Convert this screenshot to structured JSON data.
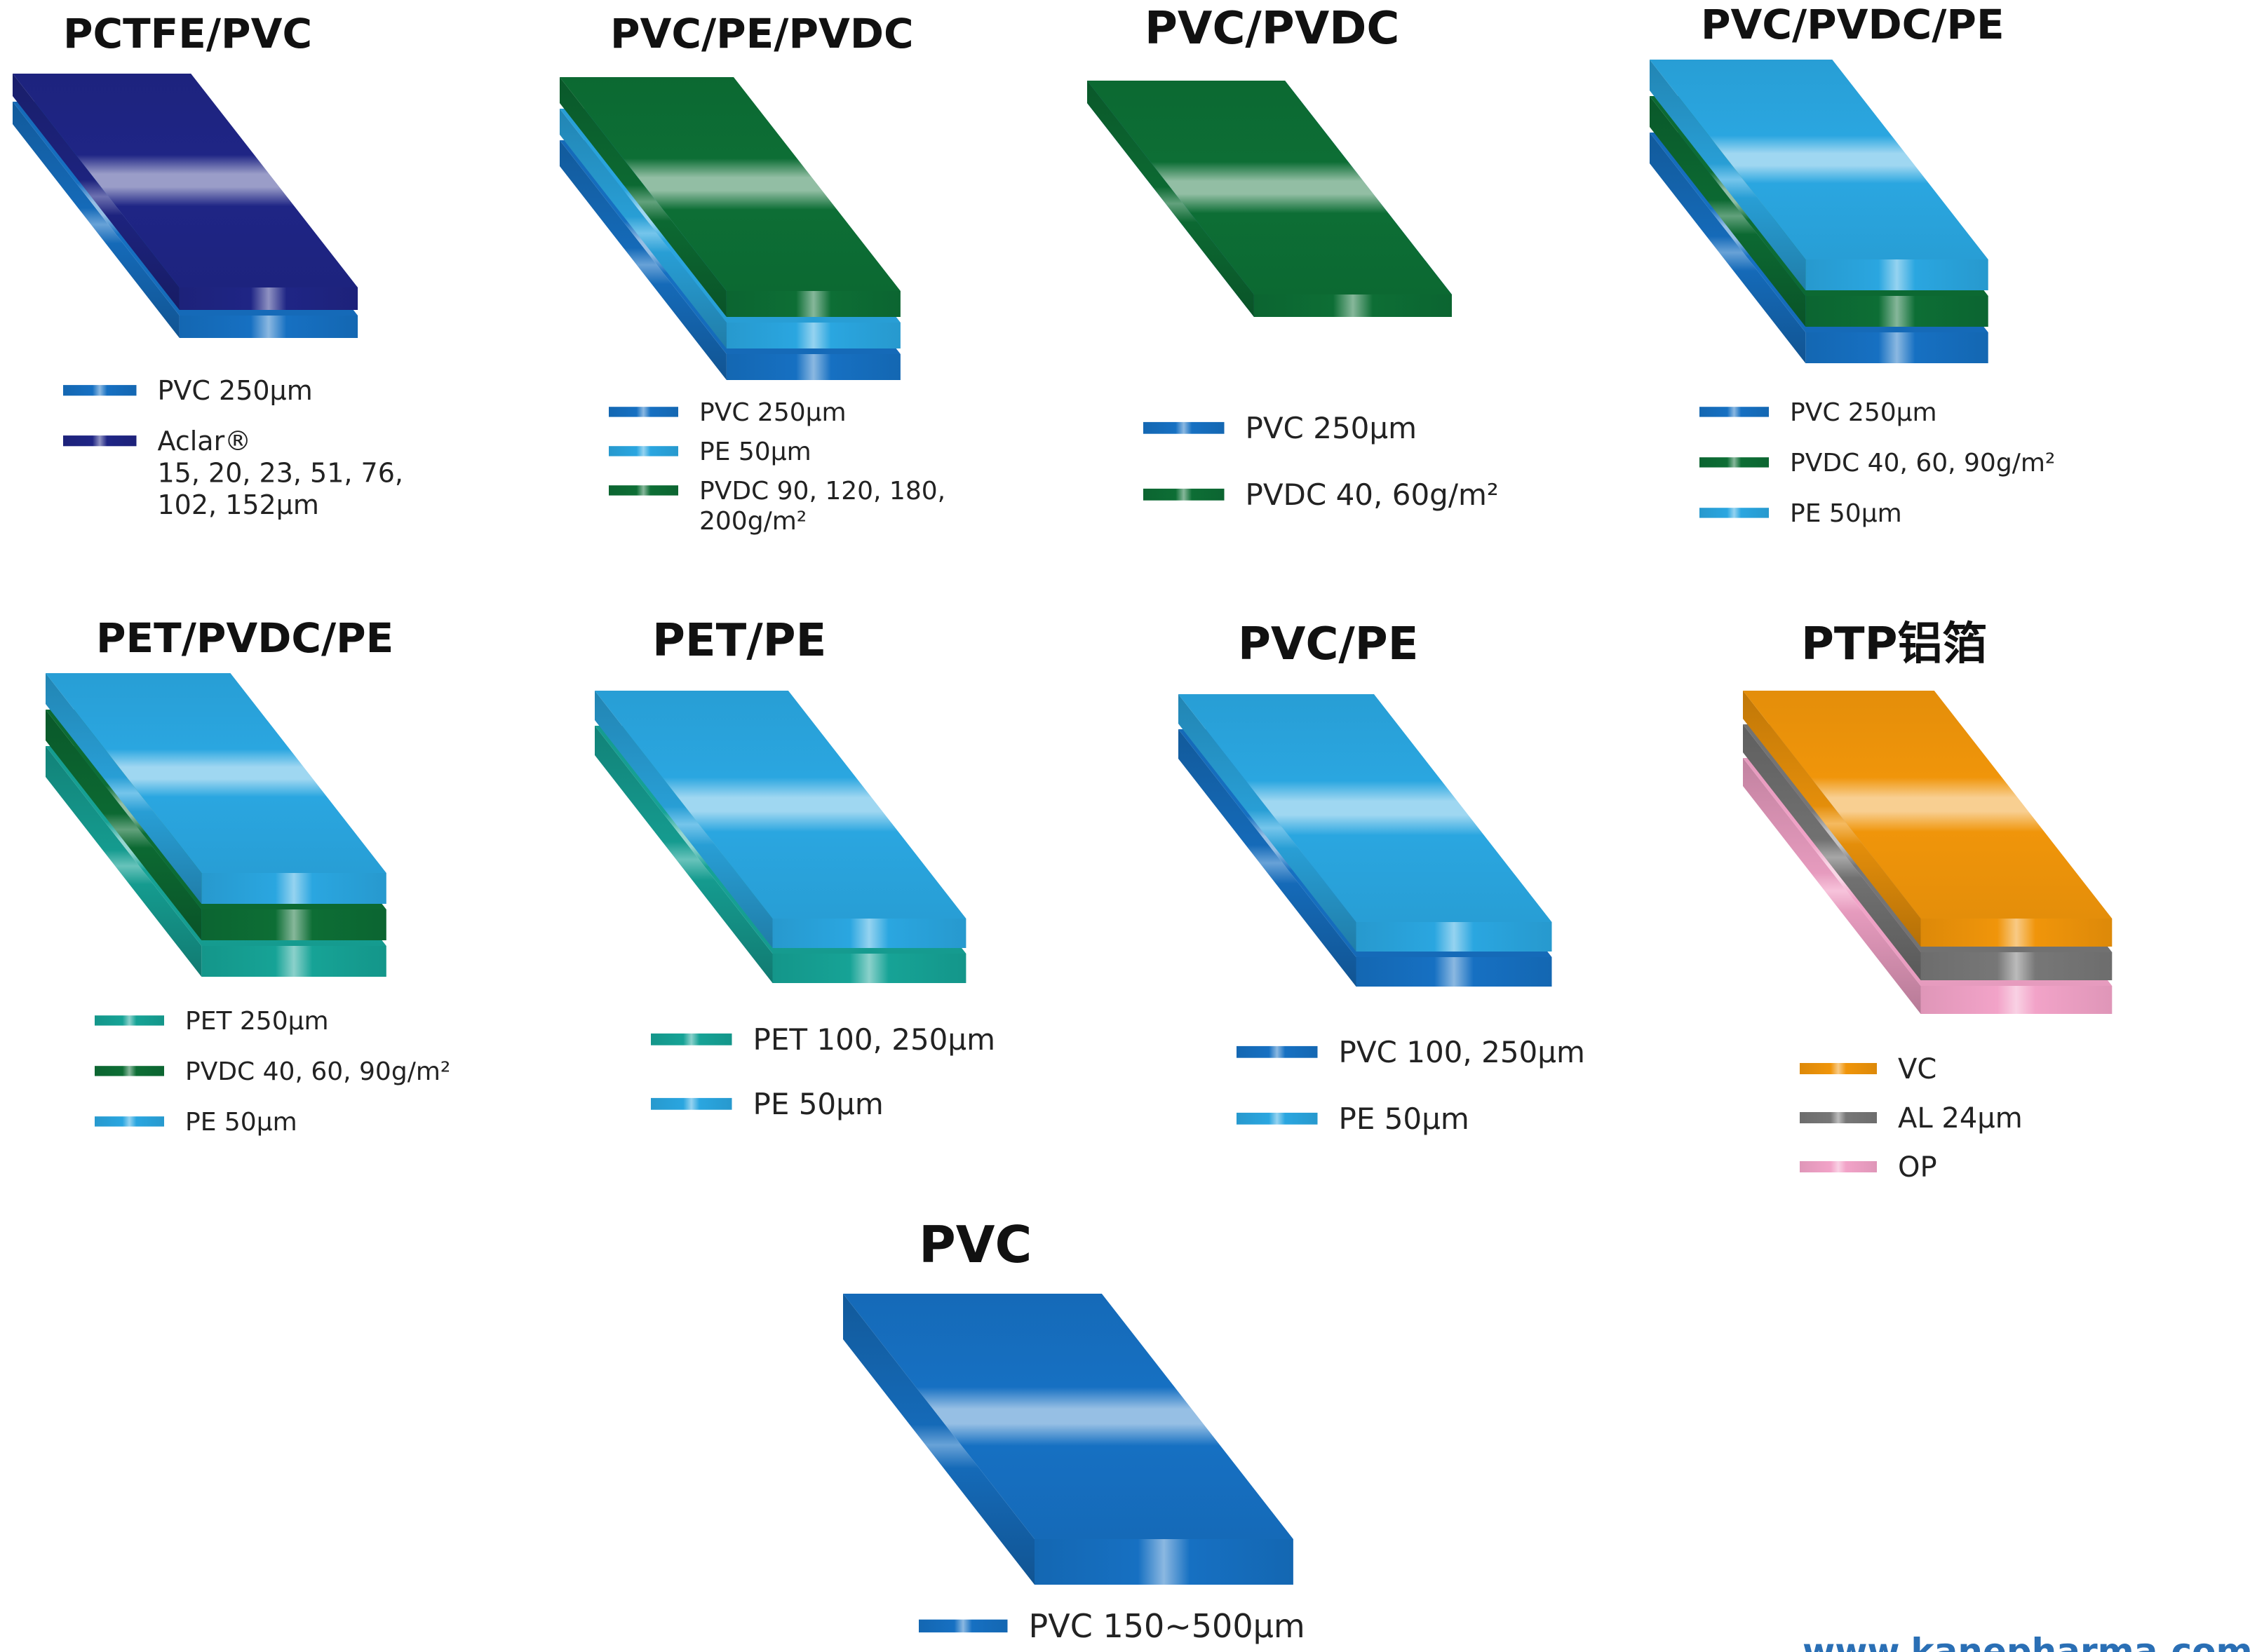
{
  "colors": {
    "PVC": "#1670c2",
    "PCTFE": "#1f2585",
    "PVDC": "#0d6e35",
    "PE": "#2aa6e0",
    "PET": "#16a396",
    "VC": "#f0950a",
    "AL": "#777777",
    "OP": "#f2a3c8"
  },
  "panels": [
    {
      "title": "PCTFE/PVC",
      "layers": [
        "PVC",
        "PCTFE"
      ],
      "legend": [
        {
          "material": "PVC",
          "lines": [
            "PVC  250μm"
          ]
        },
        {
          "material": "PCTFE",
          "lines": [
            "Aclar®",
            "15, 20, 23, 51, 76,",
            "102, 152μm"
          ]
        }
      ]
    },
    {
      "title": "PVC/PE/PVDC",
      "layers": [
        "PVC",
        "PE",
        "PVDC"
      ],
      "legend": [
        {
          "material": "PVC",
          "lines": [
            "PVC  250μm"
          ]
        },
        {
          "material": "PE",
          "lines": [
            "PE  50μm"
          ]
        },
        {
          "material": "PVDC",
          "lines": [
            "PVDC  90, 120, 180,",
            "200g/m²"
          ]
        }
      ]
    },
    {
      "title": "PVC/PVDC",
      "layers": [
        "PVC",
        "PVDC"
      ],
      "legend": [
        {
          "material": "PVC",
          "lines": [
            "PVC  250μm"
          ]
        },
        {
          "material": "PVDC",
          "lines": [
            "PVDC  40, 60g/m²"
          ]
        }
      ]
    },
    {
      "title": "PVC/PVDC/PE",
      "layers": [
        "PVC",
        "PVDC",
        "PE"
      ],
      "legend": [
        {
          "material": "PVC",
          "lines": [
            "PVC  250μm"
          ]
        },
        {
          "material": "PVDC",
          "lines": [
            "PVDC  40, 60, 90g/m²"
          ]
        },
        {
          "material": "PE",
          "lines": [
            "PE  50μm"
          ]
        }
      ]
    },
    {
      "title": "PET/PVDC/PE",
      "layers": [
        "PET",
        "PVDC",
        "PE"
      ],
      "legend": [
        {
          "material": "PET",
          "lines": [
            "PET  250μm"
          ]
        },
        {
          "material": "PVDC",
          "lines": [
            "PVDC  40, 60, 90g/m²"
          ]
        },
        {
          "material": "PE",
          "lines": [
            "PE  50μm"
          ]
        }
      ]
    },
    {
      "title": "PET/PE",
      "layers": [
        "PET",
        "PE"
      ],
      "legend": [
        {
          "material": "PET",
          "lines": [
            "PET  100, 250μm"
          ]
        },
        {
          "material": "PE",
          "lines": [
            "PE  50μm"
          ]
        }
      ]
    },
    {
      "title": "PVC/PE",
      "layers": [
        "PVC",
        "PE"
      ],
      "legend": [
        {
          "material": "PVC",
          "lines": [
            "PVC  100, 250μm"
          ]
        },
        {
          "material": "PE",
          "lines": [
            "PE  50μm"
          ]
        }
      ]
    },
    {
      "title": "PTP铝箔",
      "layers": [
        "OP",
        "AL",
        "VC"
      ],
      "legend": [
        {
          "material": "VC",
          "lines": [
            "VC"
          ]
        },
        {
          "material": "AL",
          "lines": [
            "AL  24μm"
          ]
        },
        {
          "material": "OP",
          "lines": [
            "OP"
          ]
        }
      ]
    },
    {
      "title": "PVC",
      "layers": [
        "PVC"
      ],
      "legend": [
        {
          "material": "PVC",
          "lines": [
            "PVC  150~500μm"
          ]
        }
      ]
    }
  ],
  "footer_url": "www.kanepharma.com"
}
